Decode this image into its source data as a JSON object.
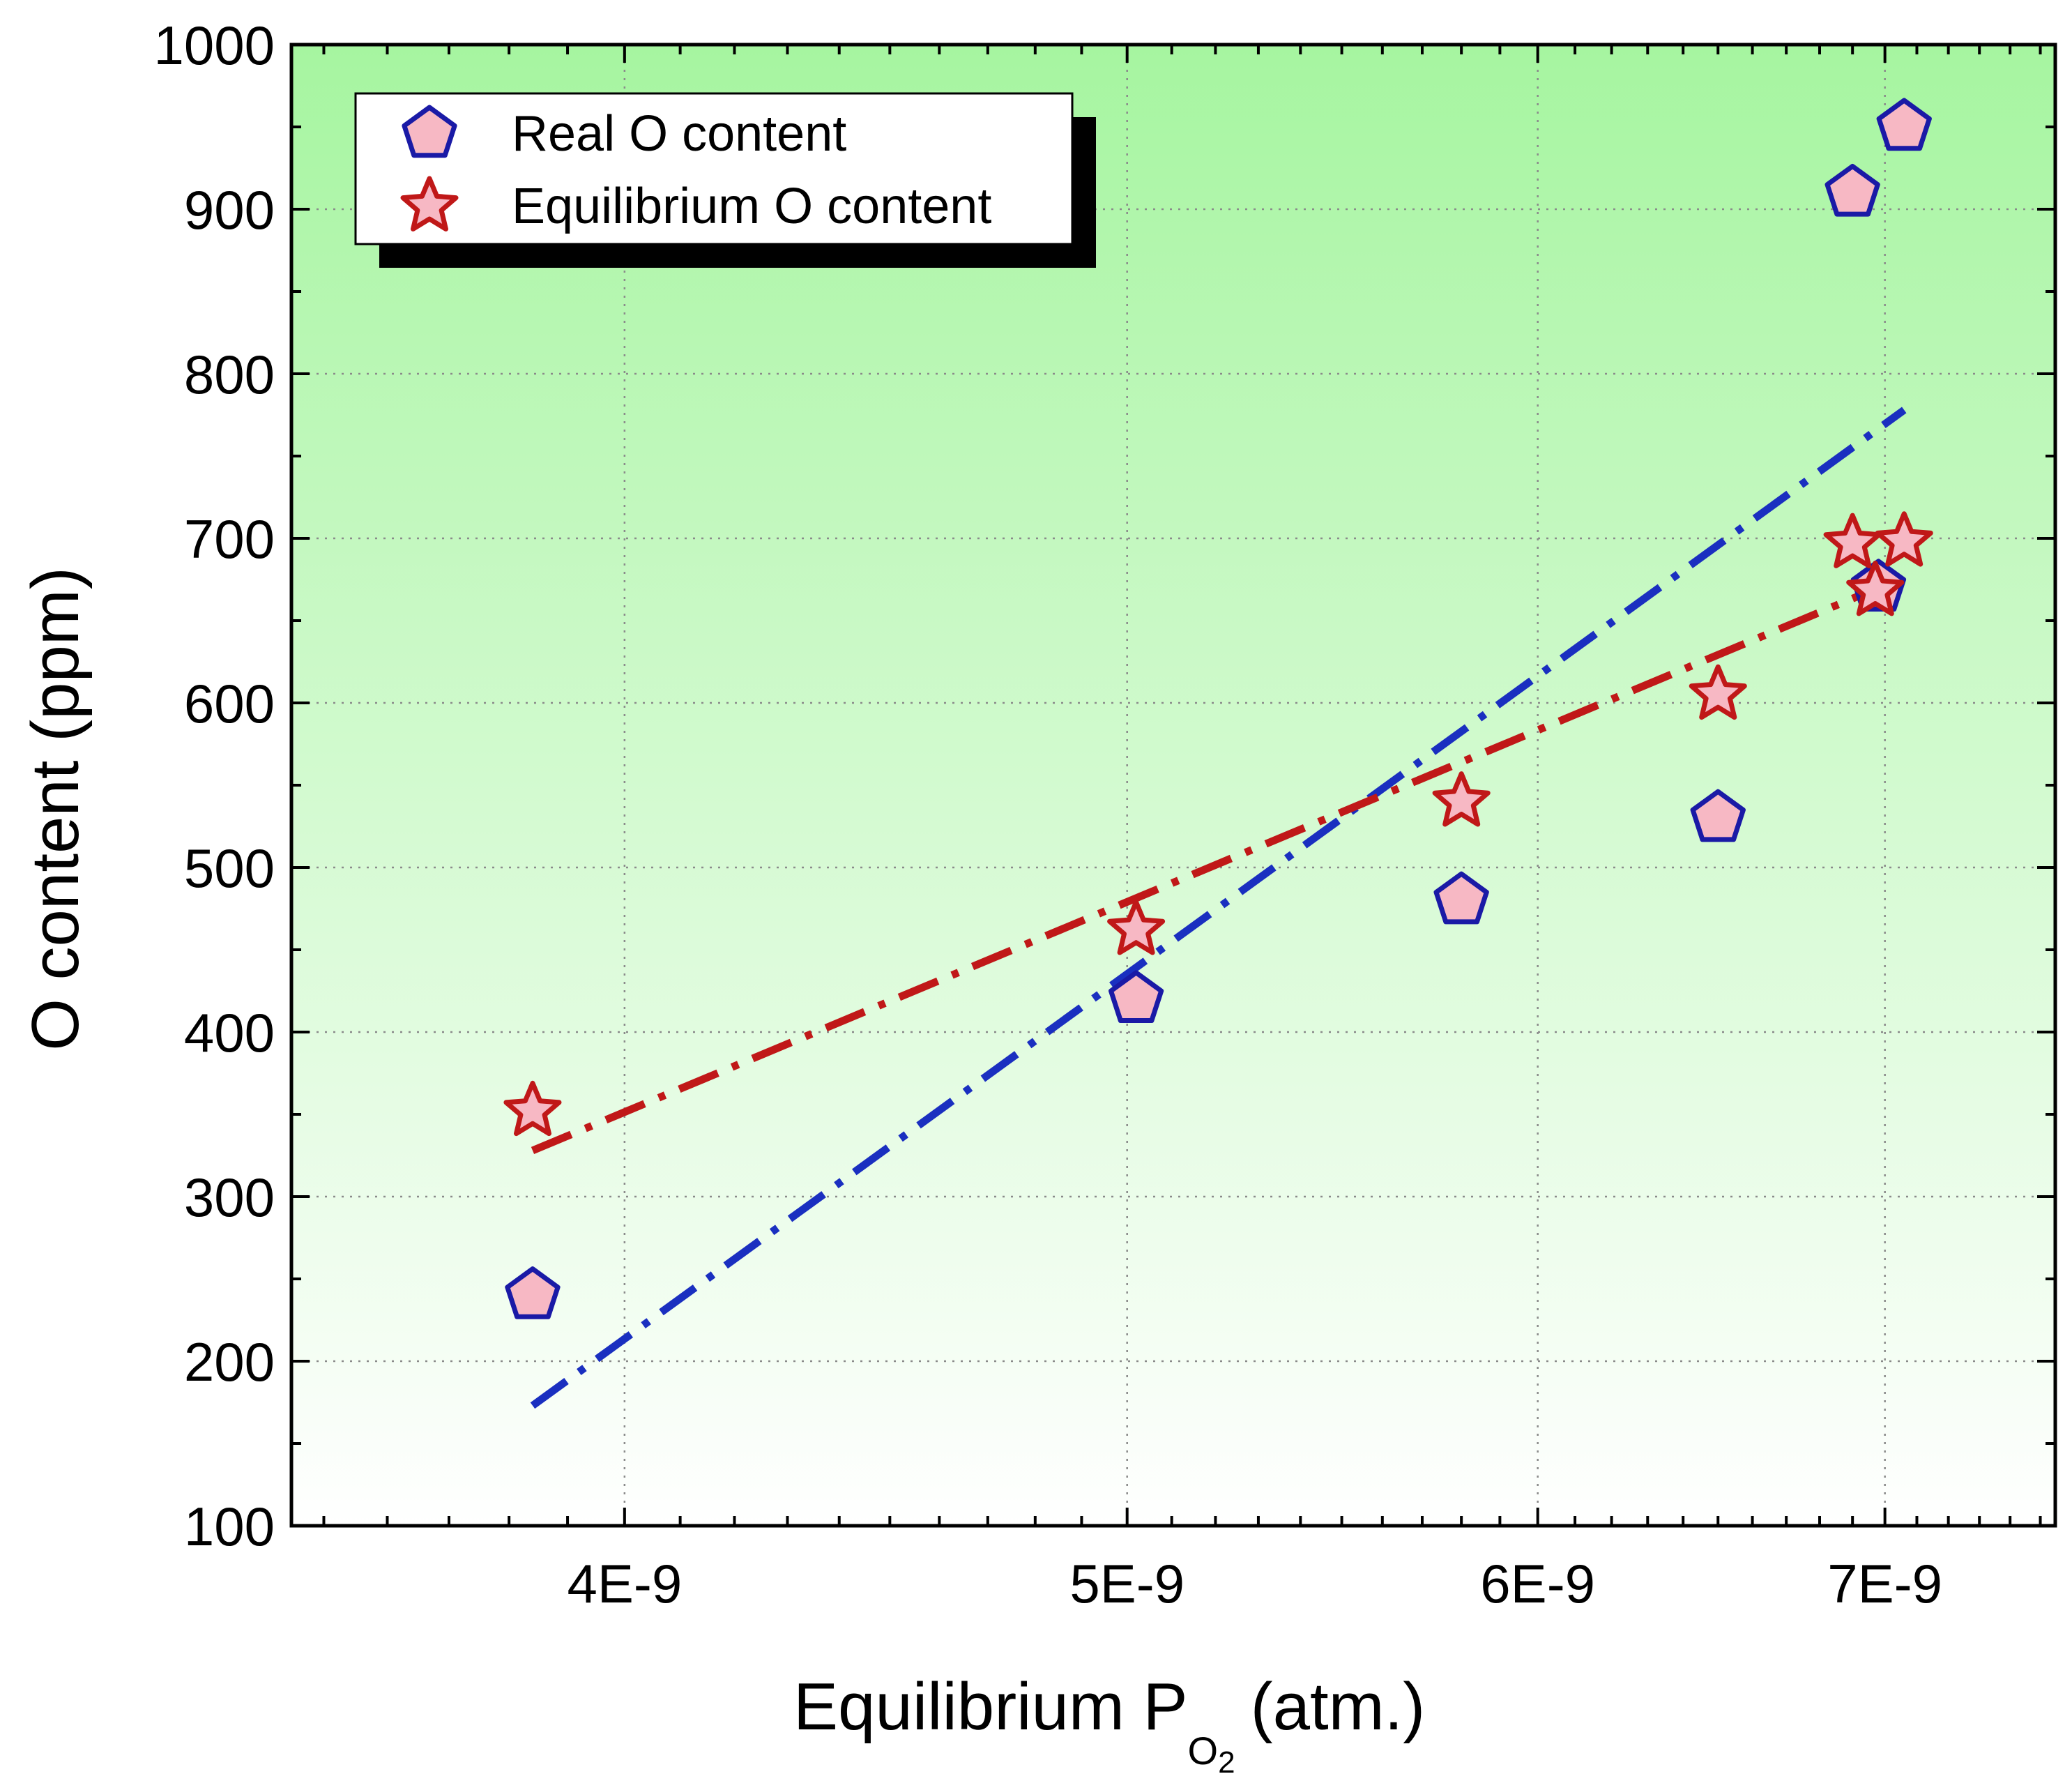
{
  "chart_data": {
    "type": "scatter",
    "title": "",
    "xlabel": "Equilibrium P",
    "xlabel_subscript_base": "O",
    "xlabel_subscript_num": "2",
    "xlabel_unit": "(atm.)",
    "ylabel": "O content (ppm)",
    "xscale": "log",
    "xlim": [
      3.45e-09,
      7.55e-09
    ],
    "ylim": [
      100,
      1000
    ],
    "grid": true,
    "legend_position": "top-left",
    "background": {
      "top_color": "#a6f5a0",
      "bottom_color": "#ffffff"
    },
    "x_ticks": [
      {
        "value": 4e-09,
        "label": "4E-9"
      },
      {
        "value": 5e-09,
        "label": "5E-9"
      },
      {
        "value": 6e-09,
        "label": "6E-9"
      },
      {
        "value": 7e-09,
        "label": "7E-9"
      }
    ],
    "y_ticks": [
      {
        "value": 100,
        "label": "100"
      },
      {
        "value": 200,
        "label": "200"
      },
      {
        "value": 300,
        "label": "300"
      },
      {
        "value": 400,
        "label": "400"
      },
      {
        "value": 500,
        "label": "500"
      },
      {
        "value": 600,
        "label": "600"
      },
      {
        "value": 700,
        "label": "700"
      },
      {
        "value": 800,
        "label": "800"
      },
      {
        "value": 900,
        "label": "900"
      },
      {
        "value": 1000,
        "label": "1000"
      }
    ],
    "series": [
      {
        "name": "Real O content",
        "marker": "pentagon",
        "fill": "#f7b8c4",
        "edge": "#1a1aa6",
        "points": [
          {
            "x": 3.84e-09,
            "y": 240
          },
          {
            "x": 5.02e-09,
            "y": 420
          },
          {
            "x": 5.8e-09,
            "y": 480
          },
          {
            "x": 6.5e-09,
            "y": 530
          },
          {
            "x": 6.98e-09,
            "y": 670
          },
          {
            "x": 6.9e-09,
            "y": 910
          },
          {
            "x": 7.06e-09,
            "y": 950
          }
        ],
        "fit": {
          "x1": 3.84e-09,
          "y1": 173,
          "x2": 7.06e-09,
          "y2": 778,
          "color": "#1a2fc0",
          "style": "dash-dot"
        }
      },
      {
        "name": "Equilibrium O content",
        "marker": "star",
        "fill": "#f7b8c4",
        "edge": "#c01818",
        "points": [
          {
            "x": 3.84e-09,
            "y": 352
          },
          {
            "x": 5.02e-09,
            "y": 462
          },
          {
            "x": 5.8e-09,
            "y": 540
          },
          {
            "x": 6.5e-09,
            "y": 605
          },
          {
            "x": 6.9e-09,
            "y": 697
          },
          {
            "x": 6.97e-09,
            "y": 668
          },
          {
            "x": 7.06e-09,
            "y": 698
          }
        ],
        "fit": {
          "x1": 3.84e-09,
          "y1": 328,
          "x2": 6.98e-09,
          "y2": 670,
          "color": "#c01818",
          "style": "dash-dot"
        }
      }
    ]
  }
}
